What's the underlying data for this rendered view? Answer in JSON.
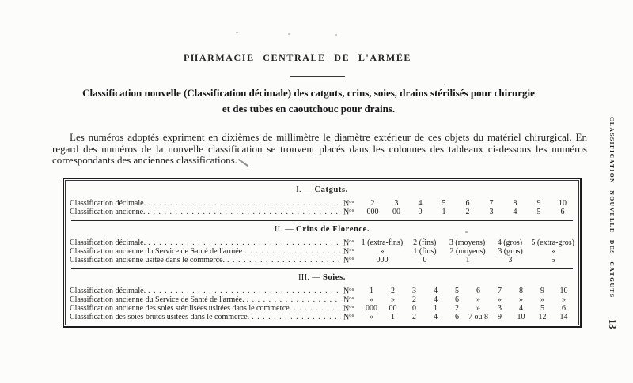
{
  "header": {
    "publisher": "PHARMACIE CENTRALE DE L'ARMÉE",
    "title_line1": "Classification nouvelle (Classification décimale) des catguts, crins, soies, drains stérilisés pour chirurgie",
    "title_line2": "et des tubes en caoutchouc pour drains."
  },
  "intro": {
    "text": "Les numéros adoptés expriment en dixièmes de millimètre le diamètre extérieur de ces objets du matériel chirurgical. En regard des numéros de la nouvelle classification se trouvent placés dans les colonnes des tableaux ci-dessous les numéros correspondants des anciennes classifications."
  },
  "table": {
    "heading_dash": "—",
    "sections": [
      {
        "numeral": "I.",
        "title": "Catguts.",
        "rows": [
          {
            "label": "Classification décimale.",
            "unit": "Nos",
            "values": [
              "2",
              "3",
              "4",
              "5",
              "6",
              "7",
              "8",
              "9",
              "10"
            ]
          },
          {
            "label": "Classification ancienne.",
            "unit": "Nos",
            "values": [
              "000",
              "00",
              "0",
              "1",
              "2",
              "3",
              "4",
              "5",
              "6"
            ]
          }
        ]
      },
      {
        "numeral": "II.",
        "title": "Crins de Florence.",
        "rows": [
          {
            "label": "Classification décimale.",
            "unit": "Nos",
            "values": [
              "1 (extra-fins)",
              "2 (fins)",
              "3 (moyens)",
              "4 (gros)",
              "5 (extra-gros)"
            ]
          },
          {
            "label": "Classification ancienne du Service de Santé de l'armée",
            "unit": "Nos",
            "values": [
              "»",
              "1 (fins)",
              "2 (moyens)",
              "3 (gros)",
              "»"
            ]
          },
          {
            "label": "Classification ancienne usitée dans le commerce.",
            "unit": "Nos",
            "values": [
              "000",
              "0",
              "1",
              "3",
              "5"
            ]
          }
        ]
      },
      {
        "numeral": "III.",
        "title": "Soies.",
        "rows": [
          {
            "label": "Classification décimale.",
            "unit": "Nos",
            "values": [
              "1",
              "2",
              "3",
              "4",
              "5",
              "6",
              "7",
              "8",
              "9",
              "10"
            ]
          },
          {
            "label": "Classification ancienne du Service de Santé de l'armée.",
            "unit": "Nos",
            "values": [
              "»",
              "»",
              "2",
              "4",
              "6",
              "»",
              "»",
              "»",
              "»",
              "»"
            ]
          },
          {
            "label": "Classification ancienne des soies stérilisées usitées dans le commerce.",
            "unit": "Nos",
            "values": [
              "000",
              "00",
              "0",
              "1",
              "2",
              "»",
              "3",
              "4",
              "5",
              "6"
            ]
          },
          {
            "label": "Classification des soies brutes usitées dans le commerce.",
            "unit": "Nos",
            "values": [
              "»",
              "1",
              "2",
              "4",
              "6",
              "7 ou 8",
              "9",
              "10",
              "12",
              "14"
            ]
          }
        ]
      }
    ]
  },
  "margin": {
    "side_note": "CLASSIFICATION NOUVELLE DES CATGUTS",
    "page_number": "13"
  }
}
